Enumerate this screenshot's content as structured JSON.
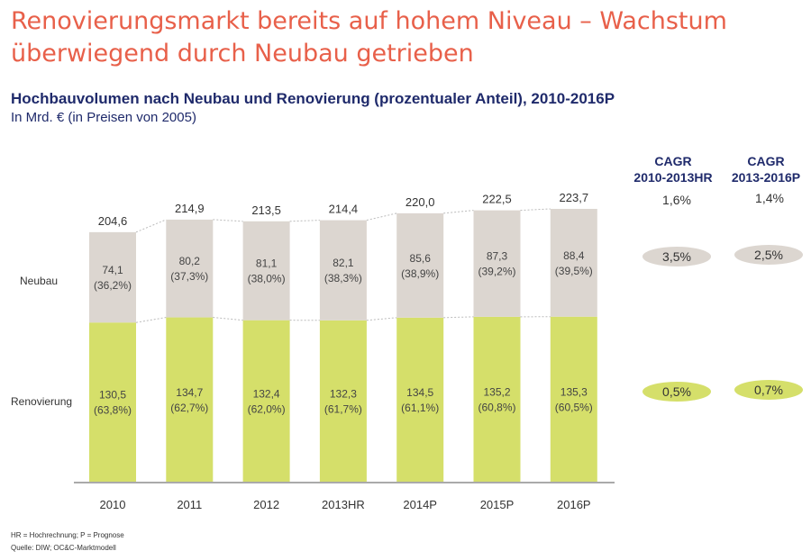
{
  "headline": "Renovierungsmarkt bereits auf hohem Niveau – Wachstum überwiegend durch Neubau getrieben",
  "subtitle": "Hochbauvolumen nach Neubau und Renovierung (prozentualer Anteil), 2010-2016P",
  "unit": "In Mrd. € (in Preisen von 2005)",
  "cagr": {
    "col1": {
      "label_line1": "CAGR",
      "label_line2": "2010-2013HR",
      "total": "1,6%",
      "neubau": "3,5%",
      "renovierung": "0,5%"
    },
    "col2": {
      "label_line1": "CAGR",
      "label_line2": "2013-2016P",
      "total": "1,4%",
      "neubau": "2,5%",
      "renovierung": "0,7%"
    }
  },
  "footnotes": {
    "line1": "HR = Hochrechnung; P = Prognose",
    "line2": "Quelle: DIW; OC&C-Marktmodell"
  },
  "colors": {
    "headline": "#e8604a",
    "subtitle": "#1f2a6b",
    "neubau": "#dcd6d0",
    "renovierung": "#d5df6a"
  },
  "chart_data": {
    "type": "bar",
    "stacked": true,
    "categories": [
      "2010",
      "2011",
      "2012",
      "2013HR",
      "2014P",
      "2015P",
      "2016P"
    ],
    "row_labels": {
      "neubau": "Neubau",
      "renovierung": "Renovierung"
    },
    "series": [
      {
        "name": "Renovierung",
        "values": [
          130.5,
          134.7,
          132.4,
          132.3,
          134.5,
          135.2,
          135.3
        ],
        "value_labels": [
          "130,5",
          "134,7",
          "132,4",
          "132,3",
          "134,5",
          "135,2",
          "135,3"
        ],
        "share_labels": [
          "(63,8%)",
          "(62,7%)",
          "(62,0%)",
          "(61,7%)",
          "(61,1%)",
          "(60,8%)",
          "(60,5%)"
        ]
      },
      {
        "name": "Neubau",
        "values": [
          74.1,
          80.2,
          81.1,
          82.1,
          85.6,
          87.3,
          88.4
        ],
        "value_labels": [
          "74,1",
          "80,2",
          "81,1",
          "82,1",
          "85,6",
          "87,3",
          "88,4"
        ],
        "share_labels": [
          "(36,2%)",
          "(37,3%)",
          "(38,0%)",
          "(38,3%)",
          "(38,9%)",
          "(39,2%)",
          "(39,5%)"
        ]
      }
    ],
    "totals": [
      204.6,
      214.9,
      213.5,
      214.4,
      220.0,
      222.5,
      223.7
    ],
    "total_labels": [
      "204,6",
      "214,9",
      "213,5",
      "214,4",
      "220,0",
      "222,5",
      "223,7"
    ],
    "ylim": [
      0,
      223.7
    ],
    "grid": false,
    "legend": "none"
  }
}
